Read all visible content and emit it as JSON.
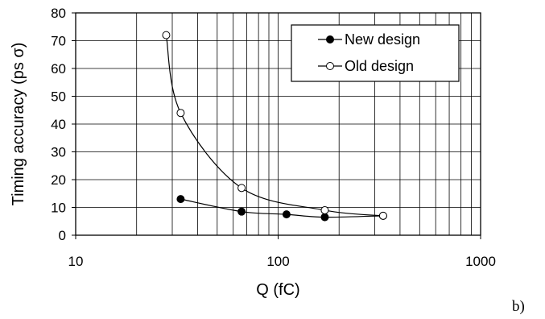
{
  "chart_data": {
    "type": "line",
    "title": "",
    "xlabel": "Q (fC)",
    "ylabel": "Timing accuracy (ps σ)",
    "x_scale": "log",
    "xlim": [
      10,
      1000
    ],
    "ylim": [
      0,
      80
    ],
    "x_ticks": [
      "10",
      "100",
      "1000"
    ],
    "y_ticks": [
      "0",
      "10",
      "20",
      "30",
      "40",
      "50",
      "60",
      "70",
      "80"
    ],
    "grid": true,
    "legend_position": "top-right",
    "series": [
      {
        "name": "New design",
        "marker": "filled-circle",
        "color": "#000000",
        "x": [
          33,
          66,
          110,
          170,
          330
        ],
        "y": [
          13,
          8.5,
          7.5,
          6.5,
          7
        ]
      },
      {
        "name": "Old design",
        "marker": "open-circle",
        "color": "#000000",
        "x": [
          28,
          33,
          66,
          170,
          330
        ],
        "y": [
          72,
          44,
          17,
          9,
          7
        ]
      }
    ]
  },
  "panel_label": "b)"
}
